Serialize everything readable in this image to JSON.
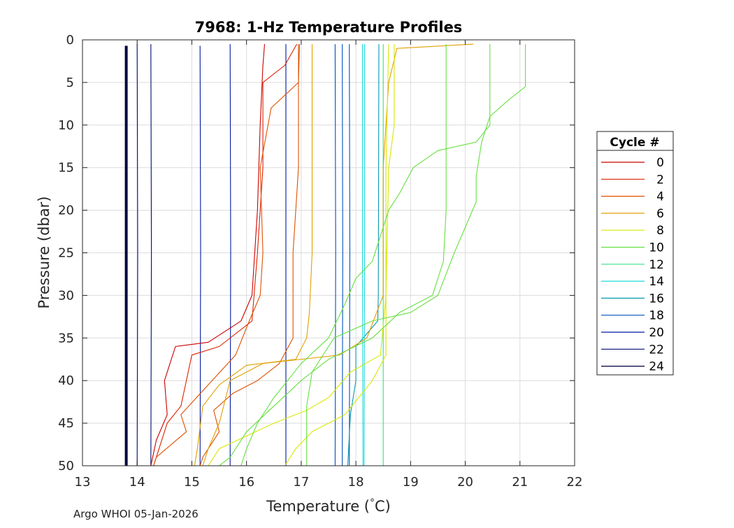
{
  "chart_data": {
    "type": "line",
    "title": "7968: 1-Hz Temperature Profiles",
    "xlabel": "Temperature (°C)",
    "xlabel_main": "Temperature (",
    "xlabel_degree": "°",
    "xlabel_unit": "C)",
    "ylabel": "Pressure (dbar)",
    "xlim": [
      13,
      22
    ],
    "ylim": [
      0,
      50
    ],
    "y_reversed": true,
    "grid": true,
    "x_ticks": [
      13,
      14,
      15,
      16,
      17,
      18,
      19,
      20,
      21,
      22
    ],
    "y_ticks": [
      0,
      5,
      10,
      15,
      20,
      25,
      30,
      35,
      40,
      45,
      50
    ],
    "legend_title": "Cycle #",
    "legend": [
      {
        "label": "0",
        "color": "#cc0000"
      },
      {
        "label": "2",
        "color": "#dd2200"
      },
      {
        "label": "4",
        "color": "#e05000"
      },
      {
        "label": "6",
        "color": "#e0a000"
      },
      {
        "label": "8",
        "color": "#d8e800"
      },
      {
        "label": "10",
        "color": "#66e040"
      },
      {
        "label": "12",
        "color": "#30e088"
      },
      {
        "label": "14",
        "color": "#20d8d8"
      },
      {
        "label": "16",
        "color": "#0898b0"
      },
      {
        "label": "18",
        "color": "#0050c0"
      },
      {
        "label": "20",
        "color": "#0018a0"
      },
      {
        "label": "22",
        "color": "#000c70"
      },
      {
        "label": "24",
        "color": "#000040"
      }
    ],
    "series": [
      {
        "name": "navy-13.8",
        "color": "#000040",
        "width": 4,
        "points": [
          [
            13.8,
            0.7
          ],
          [
            13.8,
            50
          ]
        ]
      },
      {
        "name": "navy-14.0",
        "color": "#000c70",
        "points": [
          [
            14.0,
            0.5
          ],
          [
            14.01,
            25
          ],
          [
            14.0,
            50
          ]
        ]
      },
      {
        "name": "navy-14.25",
        "color": "#000c70",
        "points": [
          [
            14.25,
            0.5
          ],
          [
            14.26,
            25
          ],
          [
            14.25,
            50
          ]
        ]
      },
      {
        "name": "blue-15.15",
        "color": "#0018a0",
        "points": [
          [
            15.15,
            0.7
          ],
          [
            15.16,
            25
          ],
          [
            15.15,
            50
          ]
        ]
      },
      {
        "name": "blue-15.7",
        "color": "#0018a0",
        "points": [
          [
            15.7,
            0.5
          ],
          [
            15.71,
            25
          ],
          [
            15.7,
            50
          ]
        ]
      },
      {
        "name": "blue-16.7",
        "color": "#0018a0",
        "points": [
          [
            16.72,
            0.5
          ],
          [
            16.72,
            25
          ],
          [
            16.72,
            50
          ]
        ]
      },
      {
        "name": "blue-17.6",
        "color": "#0050c0",
        "points": [
          [
            17.62,
            0.5
          ],
          [
            17.63,
            25
          ],
          [
            17.62,
            50
          ]
        ]
      },
      {
        "name": "blue-17.75",
        "color": "#0050c0",
        "points": [
          [
            17.75,
            0.5
          ],
          [
            17.76,
            25
          ],
          [
            17.75,
            50
          ]
        ]
      },
      {
        "name": "blue-17.9",
        "color": "#0050c0",
        "points": [
          [
            17.88,
            0.5
          ],
          [
            17.89,
            25
          ],
          [
            17.88,
            50
          ]
        ]
      },
      {
        "name": "teal-18.1",
        "color": "#0898b0",
        "points": [
          [
            18.42,
            0.5
          ],
          [
            18.41,
            30
          ],
          [
            18.4,
            33
          ],
          [
            18.0,
            36
          ],
          [
            18.0,
            40
          ],
          [
            17.9,
            44
          ],
          [
            17.85,
            50
          ]
        ]
      },
      {
        "name": "cyan-18.1",
        "color": "#20d8d8",
        "points": [
          [
            18.12,
            0.5
          ],
          [
            18.12,
            25
          ],
          [
            18.13,
            50
          ]
        ]
      },
      {
        "name": "cyan-18.15",
        "color": "#20d8d8",
        "points": [
          [
            18.16,
            0.5
          ],
          [
            18.16,
            25
          ],
          [
            18.15,
            50
          ]
        ]
      },
      {
        "name": "green-18.5",
        "color": "#30e088",
        "points": [
          [
            18.5,
            0.5
          ],
          [
            18.5,
            25
          ],
          [
            18.5,
            50
          ]
        ]
      },
      {
        "name": "red-0",
        "color": "#cc0000",
        "points": [
          [
            16.33,
            0.5
          ],
          [
            16.3,
            3
          ],
          [
            16.25,
            10
          ],
          [
            16.2,
            20
          ],
          [
            16.1,
            30
          ],
          [
            15.9,
            33
          ],
          [
            15.3,
            35.5
          ],
          [
            14.7,
            36
          ],
          [
            14.5,
            40
          ],
          [
            14.55,
            44
          ],
          [
            14.35,
            47
          ],
          [
            14.25,
            50
          ]
        ]
      },
      {
        "name": "red-2",
        "color": "#dd2200",
        "points": [
          [
            16.92,
            0.5
          ],
          [
            16.7,
            3
          ],
          [
            16.3,
            5
          ],
          [
            16.3,
            15
          ],
          [
            16.2,
            25
          ],
          [
            16.1,
            33
          ],
          [
            15.5,
            36
          ],
          [
            15.0,
            37
          ],
          [
            14.8,
            43
          ],
          [
            14.55,
            45
          ],
          [
            14.4,
            48
          ],
          [
            14.3,
            50
          ]
        ]
      },
      {
        "name": "red-4",
        "color": "#e05000",
        "points": [
          [
            16.97,
            0.5
          ],
          [
            16.95,
            5
          ],
          [
            16.45,
            8
          ],
          [
            16.25,
            15
          ],
          [
            16.3,
            25
          ],
          [
            16.25,
            30
          ],
          [
            16.05,
            33
          ],
          [
            15.8,
            37
          ],
          [
            15.3,
            40.5
          ],
          [
            14.8,
            44
          ],
          [
            14.9,
            46
          ],
          [
            14.35,
            49
          ],
          [
            14.3,
            50
          ]
        ]
      },
      {
        "name": "orange-6",
        "color": "#e05000",
        "points": [
          [
            16.95,
            0.5
          ],
          [
            16.95,
            15
          ],
          [
            16.85,
            25
          ],
          [
            16.85,
            35
          ],
          [
            16.6,
            38
          ],
          [
            16.2,
            40
          ],
          [
            15.75,
            41.5
          ],
          [
            15.4,
            43.5
          ],
          [
            15.5,
            46
          ],
          [
            15.2,
            49
          ],
          [
            15.15,
            50
          ]
        ]
      },
      {
        "name": "amber-6",
        "color": "#e0a000",
        "points": [
          [
            17.2,
            0.5
          ],
          [
            17.2,
            25
          ],
          [
            17.15,
            32
          ],
          [
            17.1,
            35
          ],
          [
            16.9,
            37.5
          ],
          [
            16.0,
            38.2
          ],
          [
            15.5,
            40.5
          ],
          [
            15.2,
            43
          ],
          [
            15.1,
            48
          ],
          [
            15.05,
            50
          ]
        ]
      },
      {
        "name": "orange-yellow",
        "color": "#e0a000",
        "points": [
          [
            20.15,
            0.5
          ],
          [
            18.75,
            1
          ],
          [
            18.6,
            5
          ],
          [
            18.5,
            15
          ],
          [
            18.5,
            30
          ],
          [
            18.2,
            35
          ],
          [
            17.7,
            37
          ],
          [
            16.3,
            38
          ],
          [
            15.7,
            40
          ],
          [
            15.5,
            45
          ],
          [
            15.3,
            48
          ],
          [
            15.2,
            50
          ]
        ]
      },
      {
        "name": "yellow-8a",
        "color": "#d8e800",
        "points": [
          [
            18.6,
            0.5
          ],
          [
            18.55,
            15
          ],
          [
            18.55,
            30
          ],
          [
            18.45,
            37
          ],
          [
            17.9,
            39
          ],
          [
            17.5,
            42
          ],
          [
            17.1,
            43.5
          ],
          [
            16.5,
            45
          ],
          [
            16.0,
            46.5
          ],
          [
            15.5,
            48
          ],
          [
            15.3,
            50
          ]
        ]
      },
      {
        "name": "yellow-8b",
        "color": "#d8e800",
        "points": [
          [
            18.7,
            0.5
          ],
          [
            18.7,
            10
          ],
          [
            18.6,
            15
          ],
          [
            18.55,
            30
          ],
          [
            18.55,
            37
          ],
          [
            18.3,
            40
          ],
          [
            17.8,
            44
          ],
          [
            17.2,
            46
          ],
          [
            16.9,
            48
          ],
          [
            16.7,
            50
          ]
        ]
      },
      {
        "name": "green-10a",
        "color": "#66e040",
        "points": [
          [
            19.65,
            0.5
          ],
          [
            19.65,
            20
          ],
          [
            19.6,
            26
          ],
          [
            19.4,
            30
          ],
          [
            18.8,
            32
          ],
          [
            18.3,
            35
          ],
          [
            17.5,
            37.5
          ],
          [
            17.0,
            40
          ],
          [
            16.5,
            43
          ],
          [
            16.0,
            46
          ],
          [
            15.7,
            49
          ],
          [
            15.5,
            50
          ]
        ]
      },
      {
        "name": "green-10b",
        "color": "#66e040",
        "points": [
          [
            20.45,
            0.5
          ],
          [
            20.45,
            10
          ],
          [
            20.2,
            12
          ],
          [
            19.5,
            13
          ],
          [
            19.05,
            15
          ],
          [
            18.8,
            18
          ],
          [
            18.6,
            20
          ],
          [
            18.4,
            24
          ],
          [
            18.3,
            26
          ],
          [
            18.0,
            28
          ],
          [
            17.8,
            31
          ],
          [
            17.5,
            35
          ],
          [
            17.0,
            38
          ],
          [
            16.5,
            42
          ],
          [
            16.2,
            45
          ],
          [
            16.0,
            48
          ],
          [
            15.9,
            50
          ]
        ]
      },
      {
        "name": "green-10c",
        "color": "#66e040",
        "points": [
          [
            21.1,
            0.5
          ],
          [
            21.1,
            5.5
          ],
          [
            20.8,
            7
          ],
          [
            20.45,
            9
          ],
          [
            20.3,
            12
          ],
          [
            20.2,
            16
          ],
          [
            20.2,
            19
          ],
          [
            20.0,
            22
          ],
          [
            19.8,
            25
          ],
          [
            19.5,
            30
          ],
          [
            19.0,
            32
          ],
          [
            18.3,
            33
          ],
          [
            17.6,
            35
          ],
          [
            17.2,
            39
          ],
          [
            17.1,
            43
          ],
          [
            17.1,
            50
          ]
        ]
      }
    ]
  },
  "footer": "Argo WHOI 05-Jan-2026"
}
